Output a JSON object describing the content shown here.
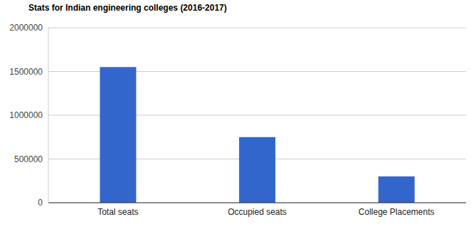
{
  "chart_data": {
    "type": "bar",
    "title": "Stats for Indian engineering colleges (2016-2017)",
    "categories": [
      "Total seats",
      "Occupied seats",
      "College Placements"
    ],
    "values": [
      1550000,
      750000,
      300000
    ],
    "color": "#3366cc",
    "ylim": [
      0,
      2000000
    ],
    "yticks": [
      0,
      500000,
      1000000,
      1500000,
      2000000
    ],
    "grid": true
  }
}
